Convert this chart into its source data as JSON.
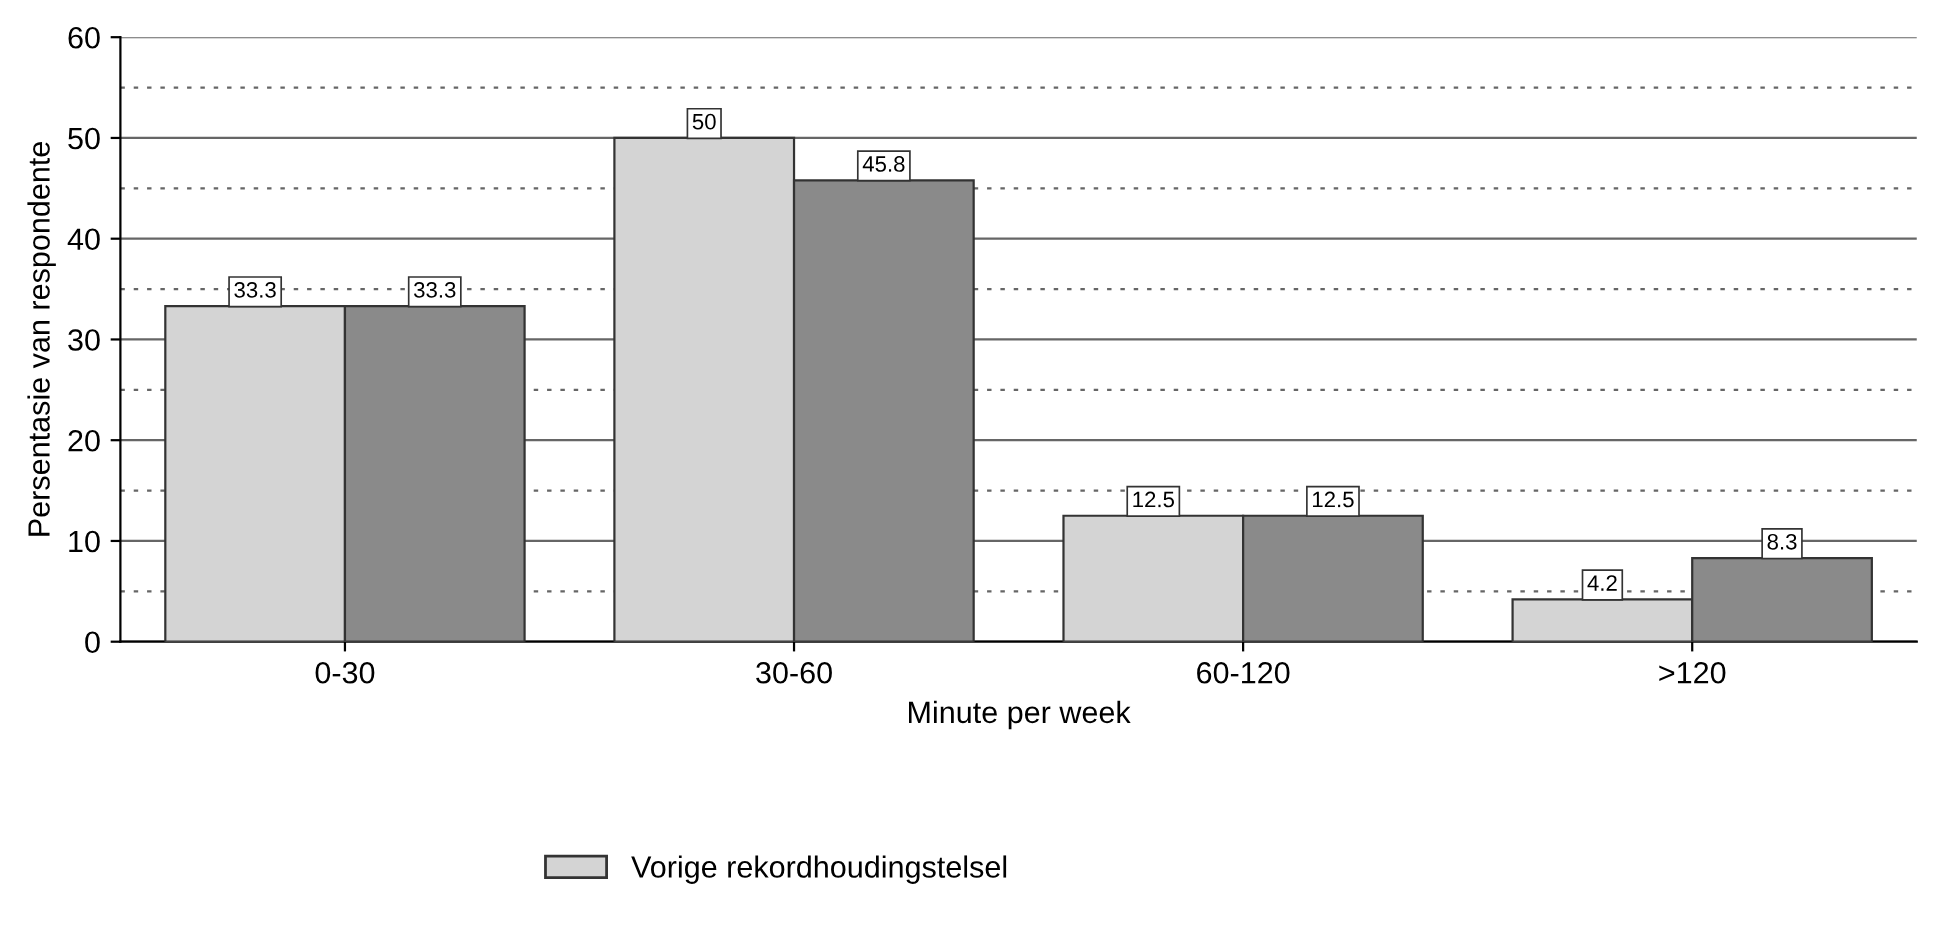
{
  "chart_data": {
    "type": "bar",
    "xlabel": "Minute per week",
    "ylabel": "Persentasie van respondente",
    "categories": [
      "0-30",
      "30-60",
      "60-120",
      ">120"
    ],
    "series": [
      {
        "name": "Vorige rekordhoudingstelsel",
        "color": "#d4d4d4",
        "values": [
          33.3,
          50,
          12.5,
          4.2
        ]
      },
      {
        "color": "#8a8a8a",
        "values": [
          33.3,
          45.8,
          12.5,
          8.3
        ]
      }
    ],
    "ylim": [
      0,
      60
    ],
    "yticks": [
      0,
      {
        "value": 5,
        "label": null
      },
      10,
      {
        "value": 15,
        "label": null
      },
      20,
      {
        "value": 25,
        "label": null
      },
      30,
      {
        "value": 35,
        "label": null
      },
      40,
      {
        "value": 45,
        "label": null
      },
      50,
      {
        "value": 55,
        "label": null
      },
      60
    ],
    "grid": "y",
    "legend": "bottom",
    "data_labels": true
  }
}
